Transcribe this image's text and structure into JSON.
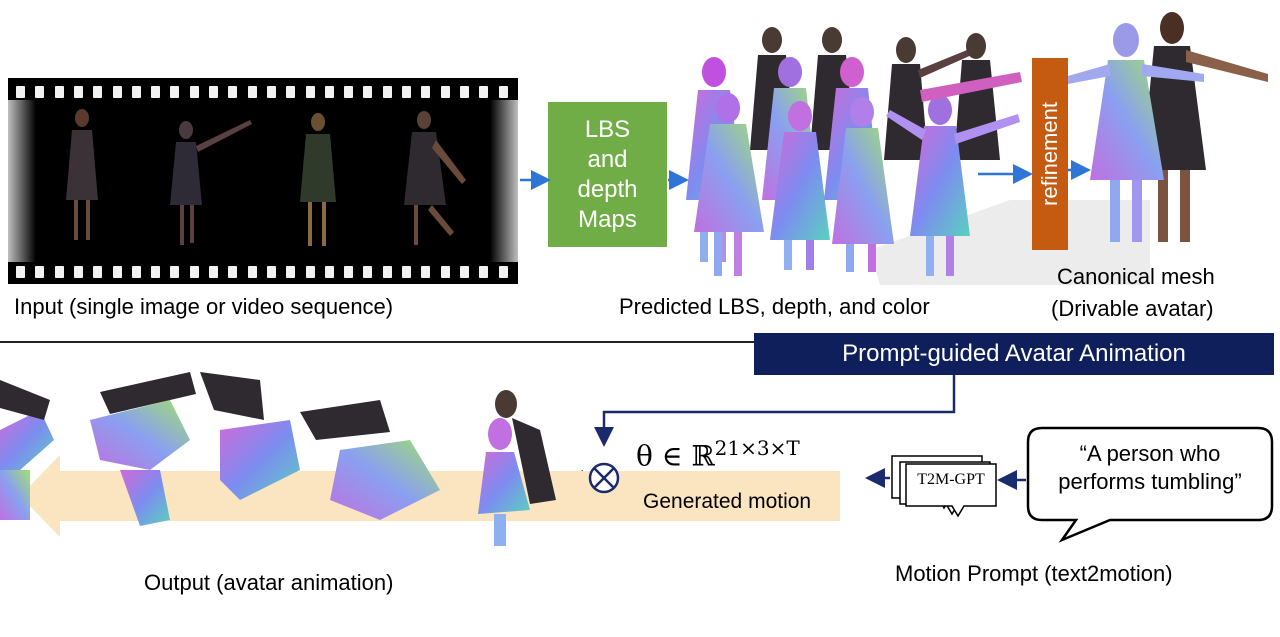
{
  "colors": {
    "green_box": "#70ad47",
    "refinement_box": "#c55a11",
    "banner": "#0f1f5c",
    "arrow_blue": "#2e75d6",
    "arrow_navy": "#1a2a6c",
    "motion_band": "#fbe5c0"
  },
  "top": {
    "input_caption": "Input (single image or video sequence)",
    "lbs_box": {
      "line1": "LBS",
      "line2": "and",
      "line3": "depth",
      "line4": "Maps"
    },
    "predicted_caption": "Predicted LBS, depth, and color",
    "refinement_label": "refinement",
    "canonical_caption_line1": "Canonical mesh",
    "canonical_caption_line2": "(Drivable avatar)"
  },
  "bottom": {
    "banner": "Prompt-guided Avatar Animation",
    "formula": "θ ∈ ℝ",
    "formula_sup": "21×3×T",
    "generated_motion": "Generated motion",
    "t2m_label": "T2M-GPT",
    "speech_line1": "“A person who",
    "speech_line2": "performs tumbling”",
    "output_caption": "Output (avatar animation)",
    "motion_prompt_caption": "Motion Prompt (text2motion)"
  }
}
